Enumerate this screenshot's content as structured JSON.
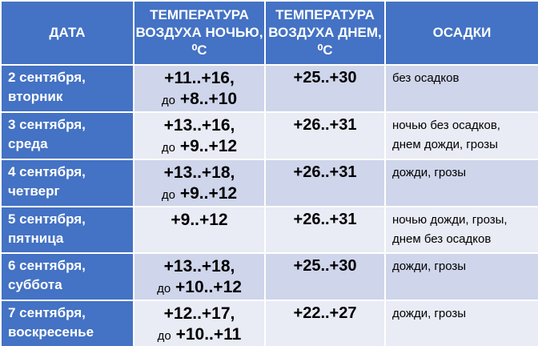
{
  "table": {
    "header": [
      "ДАТА",
      "ТЕМПЕРАТУРА ВОЗДУХА НОЧЬЮ, ⁰С",
      "ТЕМПЕРАТУРА ВОЗДУХА ДНЕМ, ⁰С",
      "ОСАДКИ"
    ],
    "rows": [
      {
        "date": "2 сентября,",
        "weekday": "вторник",
        "night": "+11..+16,",
        "night_prefix": "до",
        "night_min": "+8..+10",
        "day": "+25..+30",
        "precip": [
          "без осадков"
        ]
      },
      {
        "date": "3 сентября,",
        "weekday": "среда",
        "night": "+13..+16,",
        "night_prefix": "до",
        "night_min": "+9..+12",
        "day": "+26..+31",
        "precip": [
          "ночью без осадков,",
          "днем дожди, грозы"
        ]
      },
      {
        "date": "4 сентября,",
        "weekday": "четверг",
        "night": "+13..+18,",
        "night_prefix": "до",
        "night_min": "+9..+12",
        "day": "+26..+31",
        "precip": [
          "дожди, грозы"
        ]
      },
      {
        "date": "5 сентября,",
        "weekday": "пятница",
        "night": "+9..+12",
        "day": "+26..+31",
        "precip": [
          "ночью дожди, грозы,",
          "днем без осадков"
        ]
      },
      {
        "date": "6 сентября,",
        "weekday": "суббота",
        "night": "+13..+18,",
        "night_prefix": "до",
        "night_min": "+10..+12",
        "day": "+25..+30",
        "precip": [
          "дожди, грозы"
        ]
      },
      {
        "date": "7 сентября,",
        "weekday": "воскресенье",
        "night": "+12..+17,",
        "night_prefix": "до",
        "night_min": "+10..+11",
        "day": "+22..+27",
        "precip": [
          "дожди, грозы"
        ]
      }
    ]
  }
}
